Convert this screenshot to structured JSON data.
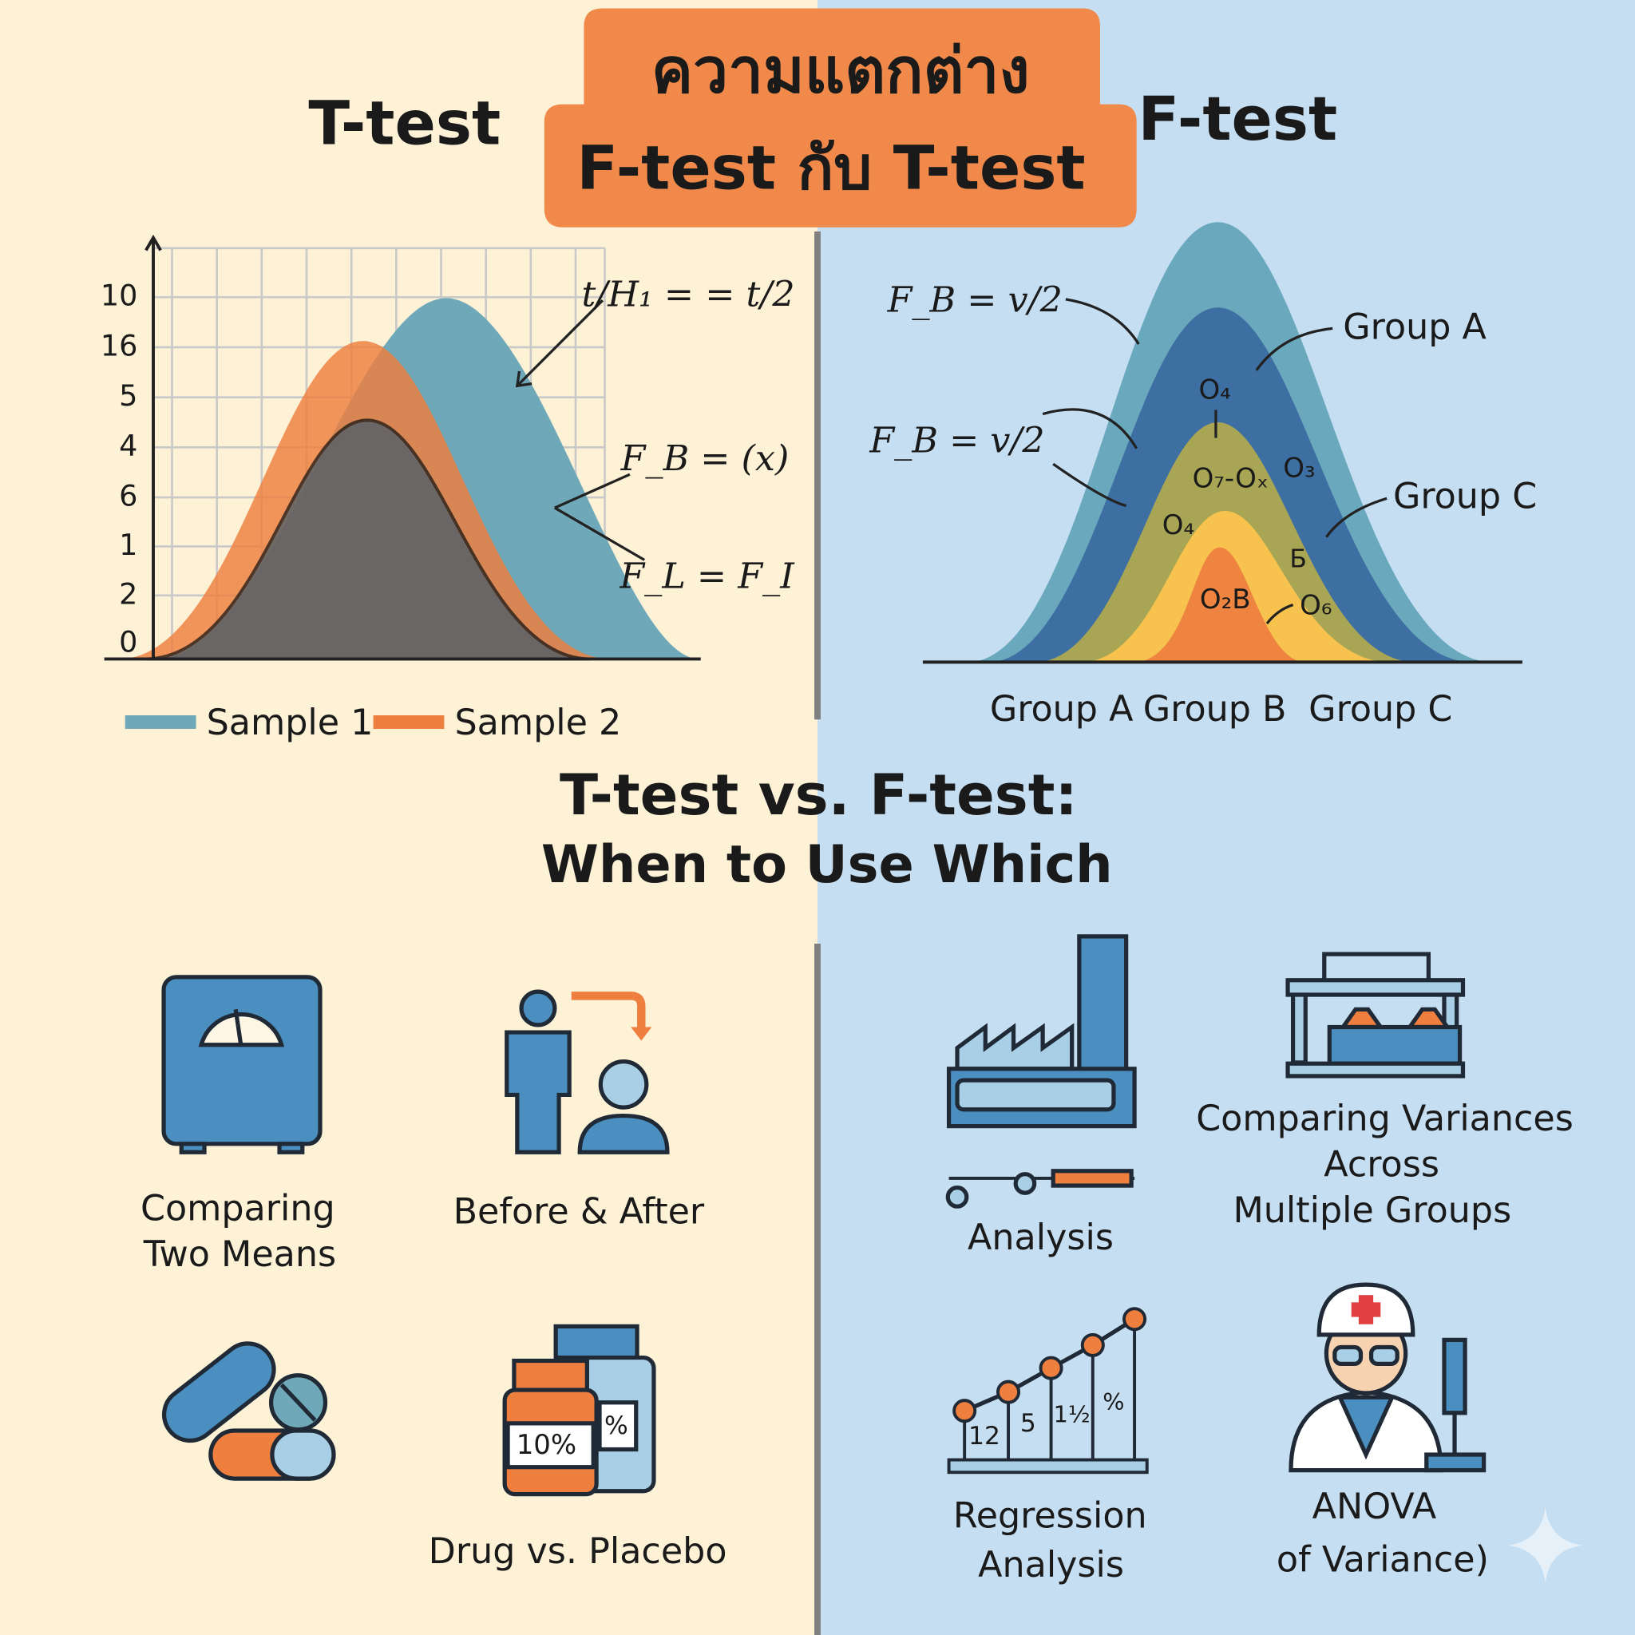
{
  "header": {
    "title_lines": [
      "ความแตกต่าง",
      "F-test กับ T-test"
    ]
  },
  "left_panel": {
    "heading": "T-test",
    "axis_labels": [
      "10",
      "16",
      "5",
      "4",
      "6",
      "1",
      "2",
      "0"
    ],
    "formulas": [
      "t/H₁ = = t/2",
      "F_B = (x)",
      "F_L = F_I"
    ],
    "legend": [
      "Sample 1",
      "Sample 2"
    ]
  },
  "right_panel": {
    "heading": "F-test",
    "formulas": [
      "F_B = v/2",
      "F_B = v/2"
    ],
    "group_labels": [
      "Group A",
      "Group C"
    ],
    "inner_labels": [
      "O₄",
      "O₇-Oₓ",
      "O₃",
      "O₄",
      "Б",
      "O₂B",
      "O₆"
    ],
    "x_labels": [
      "Group A",
      "Group B",
      "Group C"
    ]
  },
  "middle": {
    "heading_lines": [
      "T-test vs. F-test:",
      "When to Use Which"
    ]
  },
  "t_uses": [
    {
      "label_lines": [
        "Comparing",
        "Two Means"
      ]
    },
    {
      "label_lines": [
        "Before & After"
      ]
    },
    {
      "label_lines": [
        "Drug vs. Placebo"
      ],
      "icon_texts": [
        "10%",
        "%"
      ]
    }
  ],
  "f_uses": [
    {
      "label_lines": [
        "Analysis"
      ]
    },
    {
      "label_lines": [
        "Comparing Variances",
        "Across",
        "Multiple Groups"
      ]
    },
    {
      "label_lines": [
        "Regression",
        "Analysis"
      ],
      "icon_texts": [
        "12",
        "5",
        "1½",
        "%"
      ]
    },
    {
      "label_lines": [
        "ANOVA",
        "of Variance)"
      ]
    }
  ]
}
